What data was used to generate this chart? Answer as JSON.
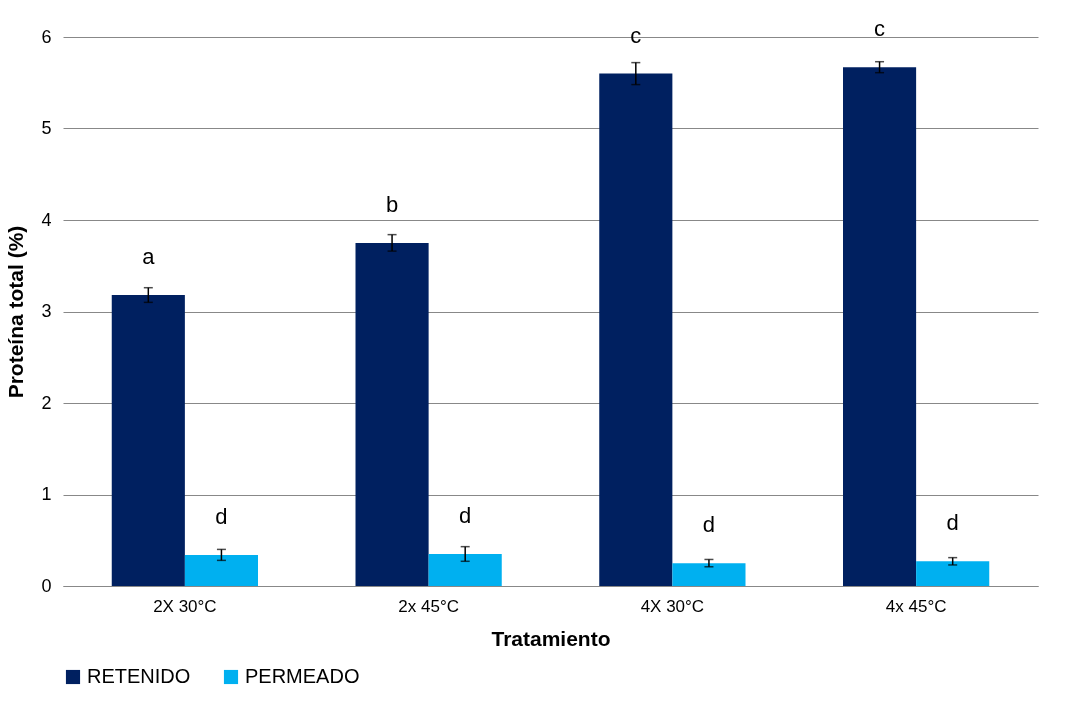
{
  "chart_data": {
    "type": "bar",
    "xlabel": "Tratamiento",
    "ylabel": "Proteína total (%)",
    "categories": [
      "2X 30°C",
      "2x 45°C",
      "4X 30°C",
      "4x 45°C"
    ],
    "series": [
      {
        "name": "RETENIDO",
        "color": "#002060",
        "values": [
          3.18,
          3.75,
          5.6,
          5.67
        ],
        "errors": [
          0.08,
          0.09,
          0.12,
          0.06
        ]
      },
      {
        "name": "PERMEADO",
        "color": "#00b0f0",
        "values": [
          0.34,
          0.35,
          0.25,
          0.27
        ],
        "errors": [
          0.06,
          0.08,
          0.04,
          0.04
        ]
      }
    ],
    "ylim": [
      0,
      6
    ],
    "yticks": [
      0,
      1,
      2,
      3,
      4,
      5,
      6
    ],
    "grid": "y",
    "legend": "bottom",
    "annotations": [
      {
        "text": "a",
        "x": "2X 30°C",
        "y": 3.18
      },
      {
        "text": "b",
        "x": "2x 45°C",
        "y": 3.75
      },
      {
        "text": "c",
        "x": "4X 30°C",
        "y": 5.6
      },
      {
        "text": "c",
        "x": "4x 45°C",
        "y": 5.67
      },
      {
        "text": "d",
        "x": "2X 30°C",
        "y": 0.34
      },
      {
        "text": "d",
        "x": "2x 45°C",
        "y": 0.35
      },
      {
        "text": "d",
        "x": "4X 30°C",
        "y": 0.25
      },
      {
        "text": "d",
        "x": "4x 45°C",
        "y": 0.27
      }
    ]
  }
}
